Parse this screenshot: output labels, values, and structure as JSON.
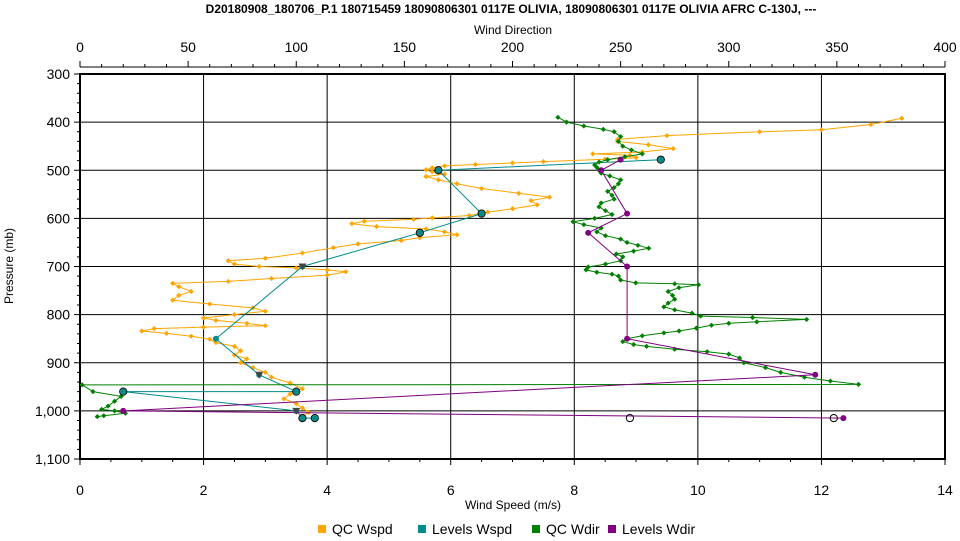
{
  "chart_data": {
    "type": "line",
    "title": "D20180908_180706_P.1 180715459 18090806301 0117E OLIVIA, 18090806301 0117E OLIVIA AFRC C-130J, ---",
    "xlabel": "Wind Speed (m/s)",
    "x2label": "Wind Direction",
    "ylabel": "Pressure (mb)",
    "xlim": [
      0,
      14
    ],
    "x2lim": [
      0,
      400
    ],
    "ylim": [
      1100,
      300
    ],
    "y_reversed": true,
    "grid": true,
    "legend_position": "bottom",
    "x_ticks": [
      "0",
      "2",
      "4",
      "6",
      "8",
      "10",
      "12",
      "14"
    ],
    "x2_ticks": [
      "0",
      "50",
      "100",
      "150",
      "200",
      "250",
      "300",
      "350",
      "400"
    ],
    "y_ticks": [
      "300",
      "400",
      "500",
      "600",
      "700",
      "800",
      "900",
      "1,000",
      "1,100"
    ],
    "series": [
      {
        "name": "QC Wspd",
        "axis": "speed",
        "color": "#FFA500",
        "points": [
          [
            13.3,
            392
          ],
          [
            12.8,
            405
          ],
          [
            12.0,
            416
          ],
          [
            11.0,
            420
          ],
          [
            9.5,
            428
          ],
          [
            8.7,
            436
          ],
          [
            8.7,
            440
          ],
          [
            9.2,
            447
          ],
          [
            9.6,
            455
          ],
          [
            9.1,
            462
          ],
          [
            8.3,
            466
          ],
          [
            8.9,
            469
          ],
          [
            9.0,
            474
          ],
          [
            8.5,
            477
          ],
          [
            7.5,
            482
          ],
          [
            7.0,
            485
          ],
          [
            6.4,
            488
          ],
          [
            5.9,
            491
          ],
          [
            5.7,
            495
          ],
          [
            5.6,
            499
          ],
          [
            5.7,
            503
          ],
          [
            5.9,
            508
          ],
          [
            5.6,
            513
          ],
          [
            5.8,
            520
          ],
          [
            6.1,
            528
          ],
          [
            6.5,
            538
          ],
          [
            7.1,
            548
          ],
          [
            7.6,
            556
          ],
          [
            7.3,
            563
          ],
          [
            7.4,
            572
          ],
          [
            7.0,
            580
          ],
          [
            6.6,
            587
          ],
          [
            6.3,
            594
          ],
          [
            5.7,
            599
          ],
          [
            5.4,
            602
          ],
          [
            4.6,
            606
          ],
          [
            4.4,
            611
          ],
          [
            4.8,
            617
          ],
          [
            5.6,
            622
          ],
          [
            5.9,
            628
          ],
          [
            6.1,
            634
          ],
          [
            5.5,
            640
          ],
          [
            5.2,
            646
          ],
          [
            4.5,
            653
          ],
          [
            4.1,
            661
          ],
          [
            3.6,
            672
          ],
          [
            3.0,
            683
          ],
          [
            2.4,
            688
          ],
          [
            2.5,
            695
          ],
          [
            2.9,
            700
          ],
          [
            3.5,
            703
          ],
          [
            4.0,
            707
          ],
          [
            4.3,
            711
          ],
          [
            4.0,
            718
          ],
          [
            3.1,
            725
          ],
          [
            2.4,
            731
          ],
          [
            1.5,
            735
          ],
          [
            1.6,
            742
          ],
          [
            1.8,
            752
          ],
          [
            1.6,
            760
          ],
          [
            1.5,
            770
          ],
          [
            2.1,
            778
          ],
          [
            2.8,
            786
          ],
          [
            3.0,
            793
          ],
          [
            2.5,
            800
          ],
          [
            2.0,
            807
          ],
          [
            2.2,
            812
          ],
          [
            2.7,
            818
          ],
          [
            3.0,
            823
          ],
          [
            2.0,
            826
          ],
          [
            1.2,
            829
          ],
          [
            1.0,
            834
          ],
          [
            1.4,
            839
          ],
          [
            1.8,
            845
          ],
          [
            2.1,
            851
          ],
          [
            2.2,
            858
          ],
          [
            2.5,
            866
          ],
          [
            2.6,
            875
          ],
          [
            2.5,
            884
          ],
          [
            2.7,
            892
          ],
          [
            2.6,
            900
          ],
          [
            2.8,
            910
          ],
          [
            3.0,
            920
          ],
          [
            3.1,
            930
          ],
          [
            3.4,
            942
          ],
          [
            3.6,
            954
          ],
          [
            3.4,
            965
          ],
          [
            3.3,
            975
          ],
          [
            3.5,
            985
          ],
          [
            3.6,
            994
          ],
          [
            3.7,
            1003
          ],
          [
            3.6,
            1012
          ]
        ]
      },
      {
        "name": "Levels Wspd",
        "axis": "speed",
        "color": "#008B8B",
        "points": [
          [
            9.4,
            478
          ],
          [
            5.8,
            500
          ],
          [
            6.5,
            590
          ],
          [
            5.5,
            630
          ],
          [
            3.6,
            700
          ],
          [
            2.2,
            850
          ],
          [
            2.9,
            925
          ],
          [
            3.5,
            960
          ],
          [
            0.7,
            960
          ],
          [
            3.5,
            1000
          ],
          [
            3.6,
            1015
          ],
          [
            3.8,
            1015
          ]
        ]
      },
      {
        "name": "QC Wdir",
        "axis": "direction",
        "color": "#008000",
        "points": [
          [
            221,
            390
          ],
          [
            225,
            400
          ],
          [
            233,
            408
          ],
          [
            242,
            415
          ],
          [
            247,
            420
          ],
          [
            250,
            430
          ],
          [
            249,
            440
          ],
          [
            251,
            450
          ],
          [
            255,
            458
          ],
          [
            260,
            466
          ],
          [
            252,
            472
          ],
          [
            244,
            478
          ],
          [
            240,
            483
          ],
          [
            238,
            489
          ],
          [
            239,
            494
          ],
          [
            240,
            500
          ],
          [
            241,
            506
          ],
          [
            245,
            512
          ],
          [
            250,
            520
          ],
          [
            249,
            528
          ],
          [
            247,
            536
          ],
          [
            244,
            544
          ],
          [
            246,
            552
          ],
          [
            247,
            560
          ],
          [
            241,
            568
          ],
          [
            240,
            576
          ],
          [
            243,
            584
          ],
          [
            246,
            592
          ],
          [
            238,
            600
          ],
          [
            228,
            607
          ],
          [
            233,
            613
          ],
          [
            241,
            620
          ],
          [
            239,
            628
          ],
          [
            243,
            636
          ],
          [
            250,
            643
          ],
          [
            253,
            650
          ],
          [
            258,
            656
          ],
          [
            263,
            662
          ],
          [
            256,
            668
          ],
          [
            248,
            674
          ],
          [
            251,
            680
          ],
          [
            250,
            688
          ],
          [
            243,
            695
          ],
          [
            235,
            701
          ],
          [
            234,
            707
          ],
          [
            239,
            712
          ],
          [
            246,
            716
          ],
          [
            249,
            720
          ],
          [
            250,
            728
          ],
          [
            257,
            734
          ],
          [
            275,
            736
          ],
          [
            286,
            738
          ],
          [
            277,
            744
          ],
          [
            272,
            752
          ],
          [
            274,
            760
          ],
          [
            275,
            768
          ],
          [
            272,
            776
          ],
          [
            270,
            784
          ],
          [
            275,
            790
          ],
          [
            283,
            797
          ],
          [
            287,
            803
          ],
          [
            311,
            806
          ],
          [
            336,
            810
          ],
          [
            313,
            815
          ],
          [
            300,
            818
          ],
          [
            292,
            822
          ],
          [
            285,
            828
          ],
          [
            277,
            834
          ],
          [
            270,
            838
          ],
          [
            260,
            844
          ],
          [
            253,
            850
          ],
          [
            251,
            856
          ],
          [
            256,
            862
          ],
          [
            262,
            866
          ],
          [
            275,
            872
          ],
          [
            290,
            877
          ],
          [
            300,
            882
          ],
          [
            305,
            890
          ],
          [
            307,
            900
          ],
          [
            317,
            910
          ],
          [
            324,
            920
          ],
          [
            335,
            930
          ],
          [
            347,
            938
          ],
          [
            360,
            945
          ],
          [
            1,
            946
          ],
          [
            6,
            960
          ],
          [
            19,
            970
          ],
          [
            16,
            980
          ],
          [
            13,
            990
          ],
          [
            10,
            997
          ],
          [
            16,
            1000
          ],
          [
            21,
            1005
          ],
          [
            11,
            1010
          ],
          [
            8,
            1012
          ]
        ]
      },
      {
        "name": "Levels Wdir",
        "axis": "direction",
        "color": "#800080",
        "points": [
          [
            250,
            478
          ],
          [
            241,
            500
          ],
          [
            253,
            590
          ],
          [
            235,
            630
          ],
          [
            253,
            700
          ],
          [
            253,
            850
          ],
          [
            340,
            925
          ],
          [
            20,
            1000
          ],
          [
            353,
            1015
          ]
        ]
      }
    ],
    "open_markers": [
      {
        "x_speed": 9.4,
        "p": 478
      },
      {
        "x_speed": 5.8,
        "p": 500
      },
      {
        "x_speed": 6.5,
        "p": 590
      },
      {
        "x_speed": 5.5,
        "p": 630
      },
      {
        "x_speed": 0.7,
        "p": 960
      },
      {
        "x_speed": 3.5,
        "p": 960
      },
      {
        "x_speed": 3.6,
        "p": 1015
      },
      {
        "x_speed": 3.8,
        "p": 1015
      },
      {
        "x_speed": 8.9,
        "p": 1015
      },
      {
        "x_speed": 12.2,
        "p": 1015
      }
    ],
    "triangle_markers": [
      {
        "x_speed": 3.6,
        "p": 700
      },
      {
        "x_speed": 2.9,
        "p": 925
      },
      {
        "x_speed": 3.5,
        "p": 1000
      }
    ],
    "legend": [
      {
        "label": "QC Wspd",
        "color": "#FFA500"
      },
      {
        "label": "Levels Wspd",
        "color": "#008B8B"
      },
      {
        "label": "QC Wdir",
        "color": "#008000"
      },
      {
        "label": "Levels Wdir",
        "color": "#800080"
      }
    ]
  }
}
